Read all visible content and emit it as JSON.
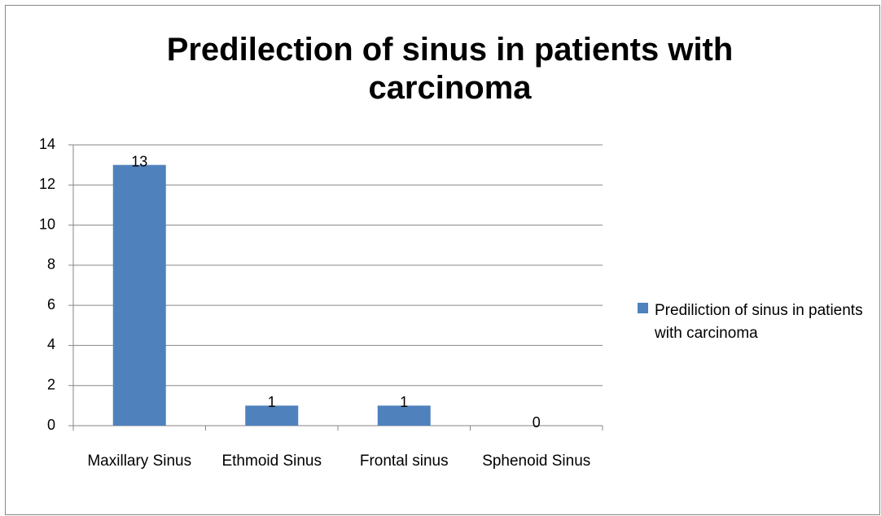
{
  "chart_data": {
    "type": "bar",
    "title": "Predilection of sinus in patients with carcinoma",
    "categories": [
      "Maxillary Sinus",
      "Ethmoid Sinus",
      "Frontal sinus",
      "Sphenoid Sinus"
    ],
    "series": [
      {
        "name": "Prediliction of sinus in patients with carcinoma",
        "color": "#4f81bd",
        "values": [
          13,
          1,
          1,
          0
        ]
      }
    ],
    "ylim": [
      0,
      14
    ],
    "yticks": [
      0,
      2,
      4,
      6,
      8,
      10,
      12,
      14
    ],
    "grid": true,
    "legend": "right"
  }
}
